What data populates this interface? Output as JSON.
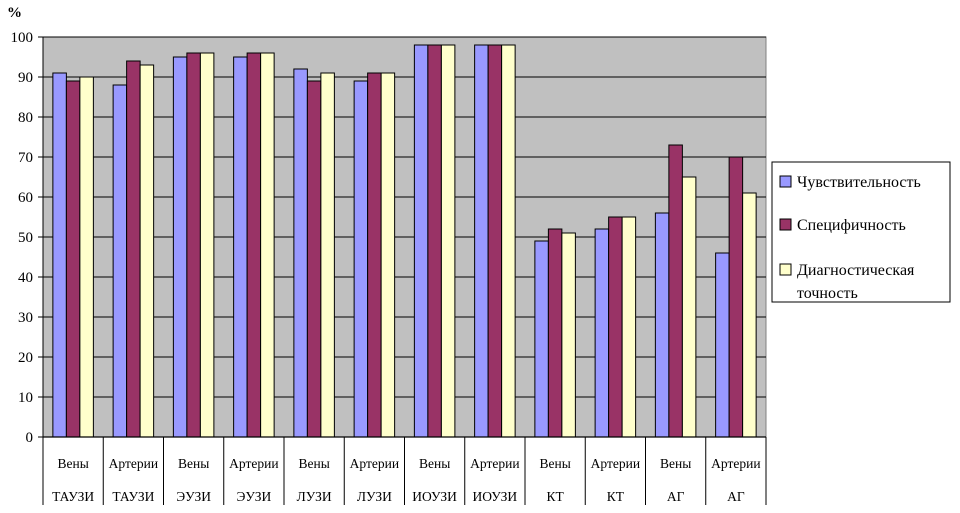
{
  "chart_data": {
    "type": "bar",
    "ylabel": "%",
    "ylim": [
      0,
      100
    ],
    "yticks": [
      "0",
      "10",
      "20",
      "30",
      "40",
      "50",
      "60",
      "70",
      "80",
      "90",
      "100"
    ],
    "grid": true,
    "legend_position": "right",
    "categories": [
      {
        "line1": "Вены",
        "line2": "ТАУЗИ"
      },
      {
        "line1": "Артерии",
        "line2": "ТАУЗИ"
      },
      {
        "line1": "Вены",
        "line2": "ЭУЗИ"
      },
      {
        "line1": "Артерии",
        "line2": "ЭУЗИ"
      },
      {
        "line1": "Вены",
        "line2": "ЛУЗИ"
      },
      {
        "line1": "Артерии",
        "line2": "ЛУЗИ"
      },
      {
        "line1": "Вены",
        "line2": "ИОУЗИ"
      },
      {
        "line1": "Артерии",
        "line2": "ИОУЗИ"
      },
      {
        "line1": "Вены",
        "line2": "КТ"
      },
      {
        "line1": "Артерии",
        "line2": "КТ"
      },
      {
        "line1": "Вены",
        "line2": "АГ"
      },
      {
        "line1": "Артерии",
        "line2": "АГ"
      }
    ],
    "series": [
      {
        "name": "Чувствительность",
        "color": "#9999ff",
        "values": [
          91,
          88,
          95,
          95,
          92,
          89,
          98,
          98,
          49,
          52,
          56,
          46
        ]
      },
      {
        "name": "Специфичность",
        "color": "#993366",
        "values": [
          89,
          94,
          96,
          96,
          89,
          91,
          98,
          98,
          52,
          55,
          73,
          70
        ]
      },
      {
        "name_lines": [
          "Диагностическая",
          "точность"
        ],
        "color": "#ffffcc",
        "values": [
          90,
          93,
          96,
          96,
          91,
          91,
          98,
          98,
          51,
          55,
          65,
          61
        ]
      }
    ],
    "plot_background": "#c0c0c0"
  }
}
